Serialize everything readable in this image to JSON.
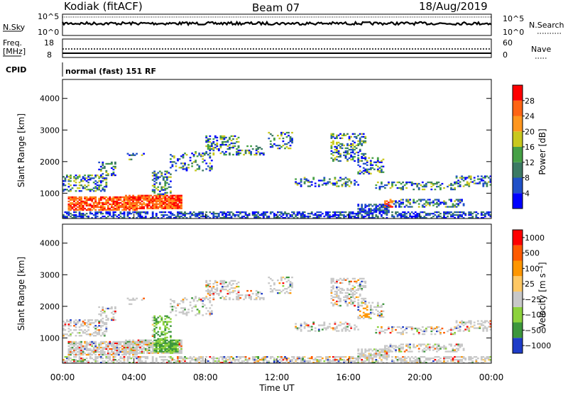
{
  "header": {
    "station": "Kodiak (fitACF)",
    "beam": "Beam 07",
    "date": "18/Aug/2019"
  },
  "strip_nsky": {
    "left_label": "N.Sky",
    "right_label": "N.Search",
    "left_ticks": [
      "10^5",
      "10^0"
    ],
    "right_ticks": [
      "10^5",
      "10^0"
    ]
  },
  "strip_freq": {
    "left_label_1": "Freq.",
    "left_label_2": "[MHz]",
    "right_label": "Nave",
    "left_ticks": [
      "18",
      "8"
    ],
    "right_ticks": [
      "60",
      "0"
    ]
  },
  "cpid": {
    "label": "CPID",
    "value": "normal (fast) 151 RF"
  },
  "colors": {
    "power": [
      "#0000ff",
      "#2050c8",
      "#3c7a64",
      "#46a046",
      "#c8c81e",
      "#ff961e",
      "#ff6414",
      "#ff0000"
    ],
    "velocity": [
      "#ff0000",
      "#ff5a00",
      "#ff9600",
      "#ffc864",
      "#c8c8c8",
      "#8cd23c",
      "#3c963c",
      "#1e3cc8"
    ]
  },
  "chart_data": [
    {
      "type": "heatmap",
      "name": "power",
      "ylabel": "Slant Range [km]",
      "ylim": [
        200,
        4600
      ],
      "yticks": [
        "1000",
        "2000",
        "3000",
        "4000"
      ],
      "xlim": [
        0,
        24
      ],
      "colorbar": {
        "label": "Power [dB]",
        "ticks": [
          "4",
          "8",
          "12",
          "16",
          "20",
          "24",
          "28"
        ]
      }
    },
    {
      "type": "heatmap",
      "name": "velocity",
      "ylabel": "Slant Range [km]",
      "ylim": [
        200,
        4600
      ],
      "yticks": [
        "1000",
        "2000",
        "3000",
        "4000"
      ],
      "xlim": [
        0,
        24
      ],
      "xlabel": "Time UT",
      "xticks": [
        "00:00",
        "04:00",
        "08:00",
        "12:00",
        "16:00",
        "20:00",
        "00:00"
      ],
      "colorbar": {
        "label": "Velocity [m s⁻¹]",
        "ticks": [
          "1000",
          "500",
          "100",
          "25",
          "−25",
          "−100",
          "−500",
          "−1000"
        ]
      }
    }
  ]
}
